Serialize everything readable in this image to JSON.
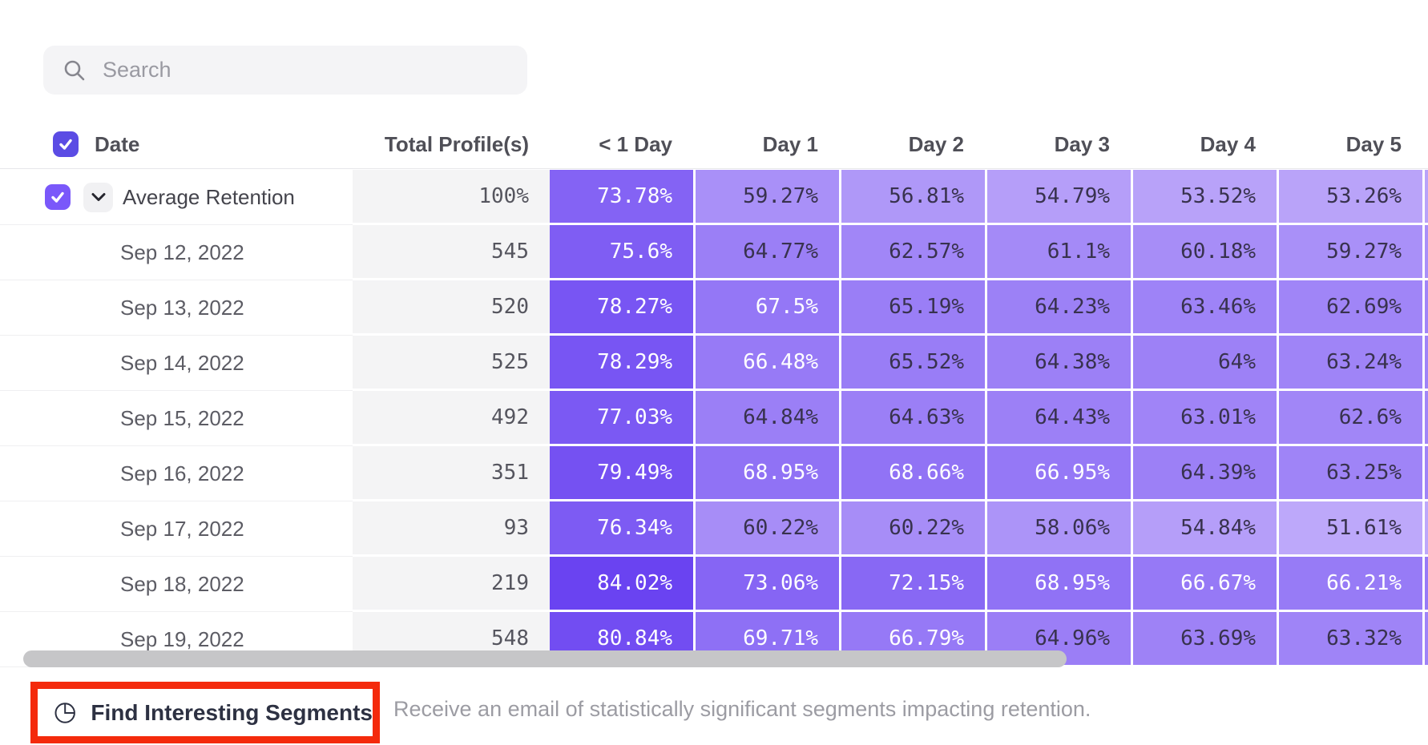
{
  "search": {
    "placeholder": "Search"
  },
  "table": {
    "columns": [
      "Date",
      "Total Profile(s)",
      "< 1 Day",
      "Day 1",
      "Day 2",
      "Day 3",
      "Day 4",
      "Day 5"
    ],
    "average_row": {
      "label": "Average Retention",
      "total": "100%",
      "values": [
        73.78,
        59.27,
        56.81,
        54.79,
        53.52,
        53.26
      ]
    },
    "rows": [
      {
        "date": "Sep 12, 2022",
        "total": "545",
        "values": [
          75.6,
          64.77,
          62.57,
          61.1,
          60.18,
          59.27
        ]
      },
      {
        "date": "Sep 13, 2022",
        "total": "520",
        "values": [
          78.27,
          67.5,
          65.19,
          64.23,
          63.46,
          62.69
        ]
      },
      {
        "date": "Sep 14, 2022",
        "total": "525",
        "values": [
          78.29,
          66.48,
          65.52,
          64.38,
          64,
          63.24
        ]
      },
      {
        "date": "Sep 15, 2022",
        "total": "492",
        "values": [
          77.03,
          64.84,
          64.63,
          64.43,
          63.01,
          62.6
        ]
      },
      {
        "date": "Sep 16, 2022",
        "total": "351",
        "values": [
          79.49,
          68.95,
          68.66,
          66.95,
          64.39,
          63.25
        ]
      },
      {
        "date": "Sep 17, 2022",
        "total": "93",
        "values": [
          76.34,
          60.22,
          60.22,
          58.06,
          54.84,
          51.61
        ]
      },
      {
        "date": "Sep 18, 2022",
        "total": "219",
        "values": [
          84.02,
          73.06,
          72.15,
          68.95,
          66.67,
          66.21
        ]
      },
      {
        "date": "Sep 19, 2022",
        "total": "548",
        "values": [
          80.84,
          69.71,
          66.79,
          64.96,
          63.69,
          63.32
        ]
      }
    ]
  },
  "footer": {
    "find_segments_label": "Find Interesting Segments",
    "description": "Receive an email of statistically significant segments impacting retention."
  },
  "colors": {
    "heat_scale_low": "#c1adfa",
    "heat_scale_high": "#6740f1",
    "heat_text_dark": "#38324e",
    "heat_text_light": "#ffffff",
    "checkbox_header": "#5b4ce4",
    "checkbox_row": "#7a58fa",
    "highlight_box": "#f42a0c"
  }
}
